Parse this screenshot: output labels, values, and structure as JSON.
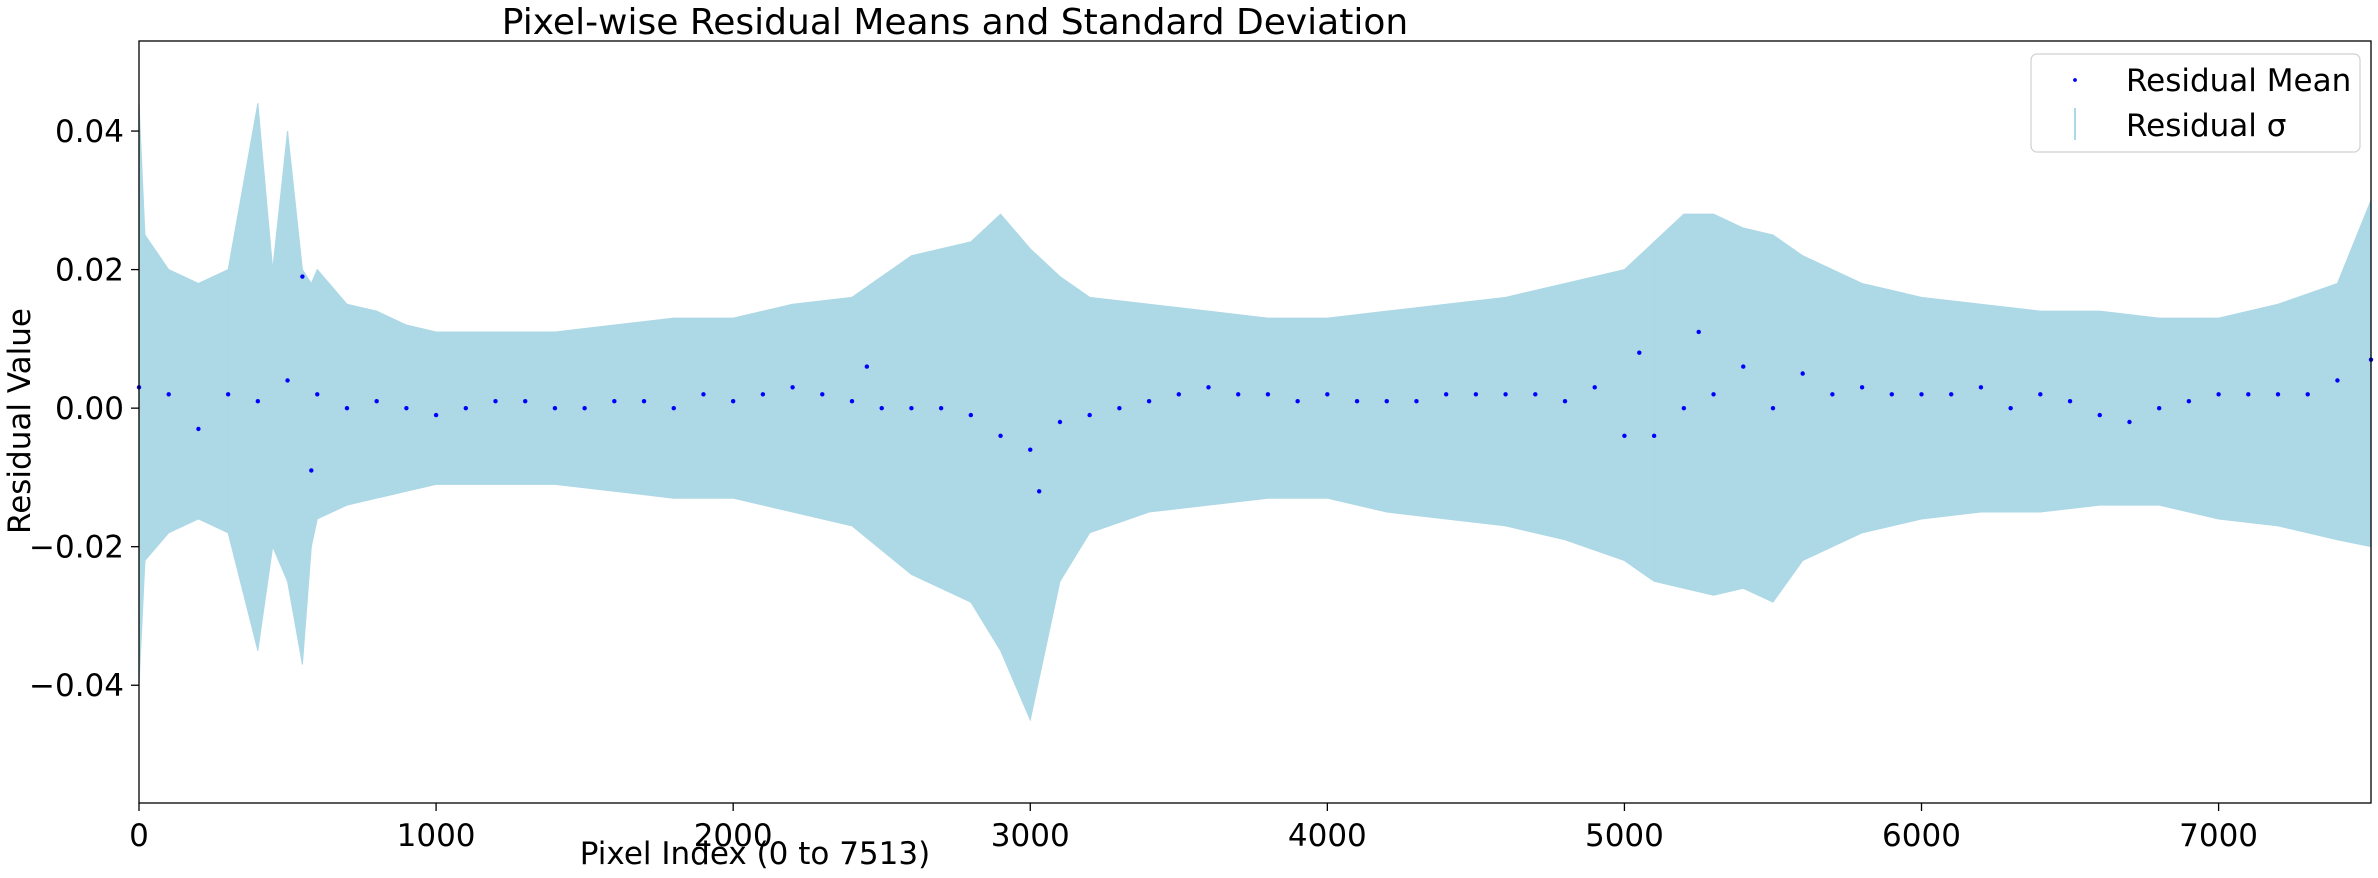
{
  "chart_data": {
    "type": "scatter",
    "title": "Pixel-wise Residual Means and Standard Deviation",
    "xlabel": "Pixel Index (0 to 7513)",
    "ylabel": "Residual Value",
    "xlim": [
      0,
      7513
    ],
    "ylim": [
      -0.057,
      0.053
    ],
    "xticks": [
      0,
      1000,
      2000,
      3000,
      4000,
      5000,
      6000,
      7000
    ],
    "yticks": [
      -0.04,
      -0.02,
      0.0,
      0.02,
      0.04
    ],
    "xtick_labels": [
      "0",
      "1000",
      "2000",
      "3000",
      "4000",
      "5000",
      "6000",
      "7000"
    ],
    "ytick_labels": [
      "−0.04",
      "−0.02",
      "0.00",
      "0.02",
      "0.04"
    ],
    "grid": false,
    "legend_position": "top-right",
    "colors": {
      "mean": "#0000ff",
      "sigma": "#add8e6",
      "axes": "#000000"
    },
    "series": [
      {
        "name": "Residual Mean",
        "kind": "points",
        "x": [
          0,
          100,
          200,
          300,
          400,
          500,
          550,
          580,
          600,
          700,
          800,
          900,
          1000,
          1100,
          1200,
          1300,
          1400,
          1500,
          1600,
          1700,
          1800,
          1900,
          2000,
          2100,
          2200,
          2300,
          2400,
          2450,
          2500,
          2600,
          2700,
          2800,
          2900,
          3000,
          3030,
          3100,
          3200,
          3300,
          3400,
          3500,
          3600,
          3700,
          3800,
          3900,
          4000,
          4100,
          4200,
          4300,
          4400,
          4500,
          4600,
          4700,
          4800,
          4900,
          5000,
          5050,
          5100,
          5200,
          5250,
          5300,
          5400,
          5500,
          5600,
          5700,
          5800,
          5900,
          6000,
          6100,
          6200,
          6300,
          6400,
          6500,
          6600,
          6700,
          6800,
          6900,
          7000,
          7100,
          7200,
          7300,
          7400,
          7513
        ],
        "values": [
          0.003,
          0.002,
          -0.003,
          0.002,
          0.001,
          0.004,
          0.019,
          -0.009,
          0.002,
          0.0,
          0.001,
          0.0,
          -0.001,
          0.0,
          0.001,
          0.001,
          0.0,
          0.0,
          0.001,
          0.001,
          0.0,
          0.002,
          0.001,
          0.002,
          0.003,
          0.002,
          0.001,
          0.006,
          0.0,
          0.0,
          0.0,
          -0.001,
          -0.004,
          -0.006,
          -0.012,
          -0.002,
          -0.001,
          0.0,
          0.001,
          0.002,
          0.003,
          0.002,
          0.002,
          0.001,
          0.002,
          0.001,
          0.001,
          0.001,
          0.002,
          0.002,
          0.002,
          0.002,
          0.001,
          0.003,
          -0.004,
          0.008,
          -0.004,
          0.0,
          0.011,
          0.002,
          0.006,
          0.0,
          0.005,
          0.002,
          0.003,
          0.002,
          0.002,
          0.002,
          0.003,
          0.0,
          0.002,
          0.001,
          -0.001,
          -0.002,
          0.0,
          0.001,
          0.002,
          0.002,
          0.002,
          0.002,
          0.004,
          0.007
        ]
      },
      {
        "name": "Residual σ",
        "kind": "band",
        "x": [
          0,
          20,
          100,
          200,
          300,
          400,
          450,
          500,
          550,
          580,
          600,
          700,
          800,
          900,
          1000,
          1200,
          1400,
          1600,
          1800,
          2000,
          2200,
          2400,
          2600,
          2800,
          2900,
          3000,
          3100,
          3200,
          3400,
          3600,
          3800,
          4000,
          4200,
          4400,
          4600,
          4800,
          5000,
          5100,
          5200,
          5300,
          5400,
          5500,
          5600,
          5800,
          6000,
          6200,
          6400,
          6600,
          6800,
          7000,
          7200,
          7400,
          7513
        ],
        "upper": [
          0.044,
          0.025,
          0.02,
          0.018,
          0.02,
          0.044,
          0.02,
          0.04,
          0.02,
          0.018,
          0.02,
          0.015,
          0.014,
          0.012,
          0.011,
          0.011,
          0.011,
          0.012,
          0.013,
          0.013,
          0.015,
          0.016,
          0.022,
          0.024,
          0.028,
          0.023,
          0.019,
          0.016,
          0.015,
          0.014,
          0.013,
          0.013,
          0.014,
          0.015,
          0.016,
          0.018,
          0.02,
          0.024,
          0.028,
          0.028,
          0.026,
          0.025,
          0.022,
          0.018,
          0.016,
          0.015,
          0.014,
          0.014,
          0.013,
          0.013,
          0.015,
          0.018,
          0.03
        ],
        "lower": [
          -0.04,
          -0.022,
          -0.018,
          -0.016,
          -0.018,
          -0.035,
          -0.02,
          -0.025,
          -0.037,
          -0.02,
          -0.016,
          -0.014,
          -0.013,
          -0.012,
          -0.011,
          -0.011,
          -0.011,
          -0.012,
          -0.013,
          -0.013,
          -0.015,
          -0.017,
          -0.024,
          -0.028,
          -0.035,
          -0.045,
          -0.025,
          -0.018,
          -0.015,
          -0.014,
          -0.013,
          -0.013,
          -0.015,
          -0.016,
          -0.017,
          -0.019,
          -0.022,
          -0.025,
          -0.026,
          -0.027,
          -0.026,
          -0.028,
          -0.022,
          -0.018,
          -0.016,
          -0.015,
          -0.015,
          -0.014,
          -0.014,
          -0.016,
          -0.017,
          -0.019,
          -0.02
        ]
      }
    ]
  }
}
